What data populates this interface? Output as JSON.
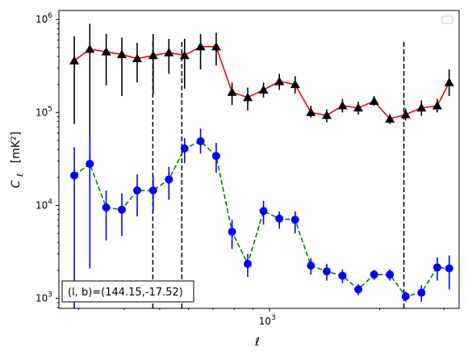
{
  "chart_data": {
    "type": "scatter",
    "title": "",
    "xlabel": "ℓ",
    "ylabel_main": "C",
    "ylabel_sub": "ℓ",
    "ylabel_unit": "[mK²]",
    "xscale": "log",
    "yscale": "log",
    "xlim": [
      265,
      3300
    ],
    "ylim": [
      780,
      1250000
    ],
    "x_ticks": [
      {
        "value": 1000,
        "label": "10",
        "exp": "3"
      }
    ],
    "y_ticks": [
      {
        "value": 1000,
        "label": "10",
        "exp": "3"
      },
      {
        "value": 10000,
        "label": "10",
        "exp": "4"
      },
      {
        "value": 100000,
        "label": "10",
        "exp": "5"
      },
      {
        "value": 1000000,
        "label": "10",
        "exp": "6"
      }
    ],
    "grid": false,
    "legend_position": "top-right",
    "annotation": "(l, b)=(144.15,-17.52)",
    "vlines": [
      {
        "x": 479,
        "ymin": 780,
        "ymax": 600000,
        "color": "#000000",
        "style": "dashed"
      },
      {
        "x": 575,
        "ymin": 780,
        "ymax": 600000,
        "color": "#000000",
        "style": "dashed"
      },
      {
        "x": 2330,
        "ymin": 780,
        "ymax": 600000,
        "color": "#000000",
        "style": "dashed"
      }
    ],
    "x": [
      292,
      322,
      357,
      394,
      434,
      480,
      530,
      585,
      647,
      714,
      789,
      871,
      962,
      1063,
      1174,
      1297,
      1433,
      1582,
      1748,
      1931,
      2133,
      2356,
      2602,
      2875,
      3100
    ],
    "series": [
      {
        "marker": "triangle",
        "marker_color": "#000000",
        "line_color": "#ff0000",
        "line_style": "solid",
        "y": [
          360000,
          480000,
          450000,
          420000,
          380000,
          410000,
          440000,
          410000,
          510000,
          510000,
          165000,
          145000,
          175000,
          215000,
          200000,
          100000,
          93000,
          118000,
          112000,
          132000,
          85000,
          95000,
          112000,
          118000,
          210000
        ],
        "y_low": [
          75000,
          30000,
          195000,
          150000,
          210000,
          160000,
          260000,
          180000,
          290000,
          320000,
          120000,
          105000,
          145000,
          175000,
          160000,
          88000,
          78000,
          100000,
          95000,
          118000,
          75000,
          82000,
          92000,
          100000,
          150000
        ],
        "y_high": [
          660000,
          900000,
          700000,
          640000,
          560000,
          700000,
          620000,
          620000,
          700000,
          720000,
          210000,
          185000,
          210000,
          260000,
          245000,
          118000,
          108000,
          140000,
          130000,
          150000,
          96000,
          110000,
          135000,
          140000,
          290000
        ]
      },
      {
        "marker": "circle",
        "marker_color": "#0000ff",
        "line_color": "#008000",
        "line_style": "dashed",
        "y": [
          21000,
          28000,
          9500,
          9000,
          14500,
          14500,
          19000,
          41000,
          49000,
          34000,
          5200,
          2350,
          8700,
          7200,
          7000,
          2250,
          1950,
          1750,
          1250,
          1800,
          1800,
          1050,
          1150,
          2150,
          2100
        ],
        "y_low": [
          780,
          2100,
          4200,
          4700,
          7600,
          8600,
          11500,
          28500,
          36000,
          22500,
          3400,
          1700,
          6200,
          5600,
          5000,
          1800,
          1550,
          1450,
          1080,
          1580,
          1550,
          920,
          920,
          1550,
          1250
        ],
        "y_high": [
          42000,
          55000,
          14500,
          13500,
          21500,
          20500,
          26000,
          53000,
          67000,
          47000,
          7000,
          3000,
          11200,
          8600,
          8600,
          2700,
          2350,
          2050,
          1420,
          2020,
          2050,
          1180,
          1380,
          2750,
          2900
        ]
      }
    ]
  }
}
